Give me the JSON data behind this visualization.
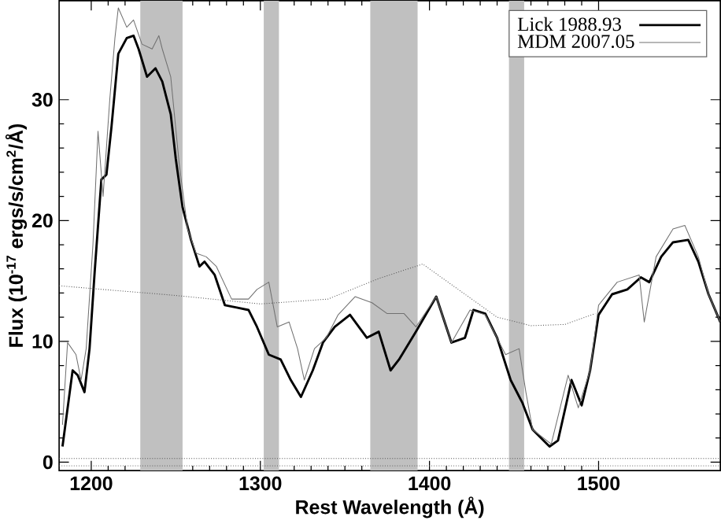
{
  "chart_data": {
    "type": "line",
    "xlabel": "Rest Wavelength (Å)",
    "ylabel": "Flux (10$^{-17}$ ergs/s/cm$^{2}$/Å)",
    "xlim": [
      1181,
      1572
    ],
    "ylim": [
      -0.7,
      38.2
    ],
    "xticks": [
      1200,
      1300,
      1400,
      1500
    ],
    "yticks": [
      0,
      10,
      20,
      30
    ],
    "legend": "top right",
    "grid": false,
    "marker": "none",
    "bands": [
      {
        "axis": "x",
        "from": 1229,
        "to": 1254,
        "color": "#c0c0c0"
      },
      {
        "axis": "x",
        "from": 1302,
        "to": 1311,
        "color": "#c0c0c0"
      },
      {
        "axis": "x",
        "from": 1365,
        "to": 1393,
        "color": "#c0c0c0"
      },
      {
        "axis": "x",
        "from": 1447,
        "to": 1456,
        "color": "#c0c0c0"
      }
    ],
    "series": [
      {
        "name": "Lick 1988.93",
        "color": "#000000",
        "line_style": "solid",
        "x": [
          1183,
          1189,
          1192,
          1196,
          1199,
          1202,
          1206,
          1209,
          1212,
          1216,
          1221,
          1225,
          1228,
          1233,
          1238,
          1242,
          1247,
          1250,
          1254,
          1259,
          1264,
          1267,
          1273,
          1279,
          1286,
          1293,
          1298,
          1305,
          1312,
          1318,
          1324,
          1331,
          1337,
          1344,
          1353,
          1363,
          1370,
          1377,
          1382,
          1392,
          1404,
          1413,
          1421,
          1426,
          1433,
          1440,
          1448,
          1455,
          1461,
          1471,
          1476,
          1481,
          1484,
          1490,
          1495,
          1500,
          1508,
          1517,
          1525,
          1530,
          1537,
          1544,
          1553,
          1559,
          1565,
          1572
        ],
        "values": [
          1.3,
          7.6,
          7.2,
          5.8,
          9.4,
          15.7,
          23.4,
          23.8,
          27.8,
          33.8,
          35.1,
          35.3,
          34.2,
          31.9,
          32.6,
          31.5,
          28.8,
          25.1,
          21.1,
          18.4,
          16.2,
          16.6,
          15.5,
          13.0,
          12.8,
          12.6,
          11.2,
          8.9,
          8.5,
          6.8,
          5.4,
          7.6,
          9.9,
          11.2,
          12.2,
          10.3,
          10.8,
          7.6,
          8.5,
          10.8,
          13.7,
          9.9,
          10.3,
          12.6,
          12.3,
          10.3,
          6.8,
          4.9,
          2.7,
          1.3,
          1.8,
          4.9,
          6.8,
          4.7,
          7.6,
          12.2,
          13.9,
          14.3,
          15.3,
          14.9,
          17.0,
          18.2,
          18.4,
          16.6,
          13.9,
          11.6
        ]
      },
      {
        "name": "MDM 2007.05",
        "color": "#707070",
        "line_style": "solid",
        "x": [
          1183,
          1186,
          1191,
          1194,
          1197,
          1201,
          1204,
          1207,
          1211,
          1214,
          1216,
          1221,
          1225,
          1230,
          1236,
          1240,
          1242,
          1247,
          1252,
          1257,
          1262,
          1268,
          1274,
          1283,
          1293,
          1298,
          1305,
          1310,
          1317,
          1322,
          1326,
          1332,
          1339,
          1346,
          1356,
          1366,
          1375,
          1385,
          1392,
          1404,
          1413,
          1424,
          1433,
          1445,
          1453,
          1457,
          1461,
          1472,
          1482,
          1488,
          1495,
          1500,
          1511,
          1524,
          1527,
          1534,
          1544,
          1551,
          1559,
          1565,
          1572
        ],
        "values": [
          3.1,
          9.9,
          8.9,
          6.8,
          9.4,
          18.0,
          27.4,
          22.0,
          30.1,
          35.1,
          37.6,
          36.0,
          36.6,
          34.6,
          34.2,
          35.3,
          34.2,
          31.9,
          24.7,
          19.3,
          17.3,
          17.0,
          16.2,
          13.5,
          13.5,
          14.3,
          14.9,
          11.2,
          11.6,
          9.4,
          6.8,
          9.4,
          10.3,
          12.2,
          13.7,
          13.2,
          12.3,
          12.3,
          11.2,
          13.7,
          9.9,
          12.6,
          12.2,
          8.9,
          9.4,
          5.8,
          2.7,
          1.5,
          7.2,
          4.5,
          7.6,
          13.0,
          14.9,
          15.5,
          11.6,
          17.0,
          19.3,
          19.6,
          17.0,
          13.9,
          11.6
        ]
      },
      {
        "color": "#555555",
        "line_style": "dotted",
        "x": [
          1181,
          1250,
          1300,
          1340,
          1370,
          1396,
          1420,
          1440,
          1460,
          1480,
          1498
        ],
        "values": [
          14.6,
          13.8,
          13.1,
          13.5,
          15.2,
          16.4,
          14.0,
          12.0,
          11.3,
          11.4,
          12.3
        ]
      },
      {
        "color": "#555555",
        "line_style": "dotted",
        "x": [
          1181,
          1572
        ],
        "values": [
          0.3,
          0.3
        ]
      },
      {
        "color": "#555555",
        "line_style": "dotted",
        "x": [
          1181,
          1572
        ],
        "values": [
          -0.3,
          -0.3
        ]
      }
    ]
  }
}
